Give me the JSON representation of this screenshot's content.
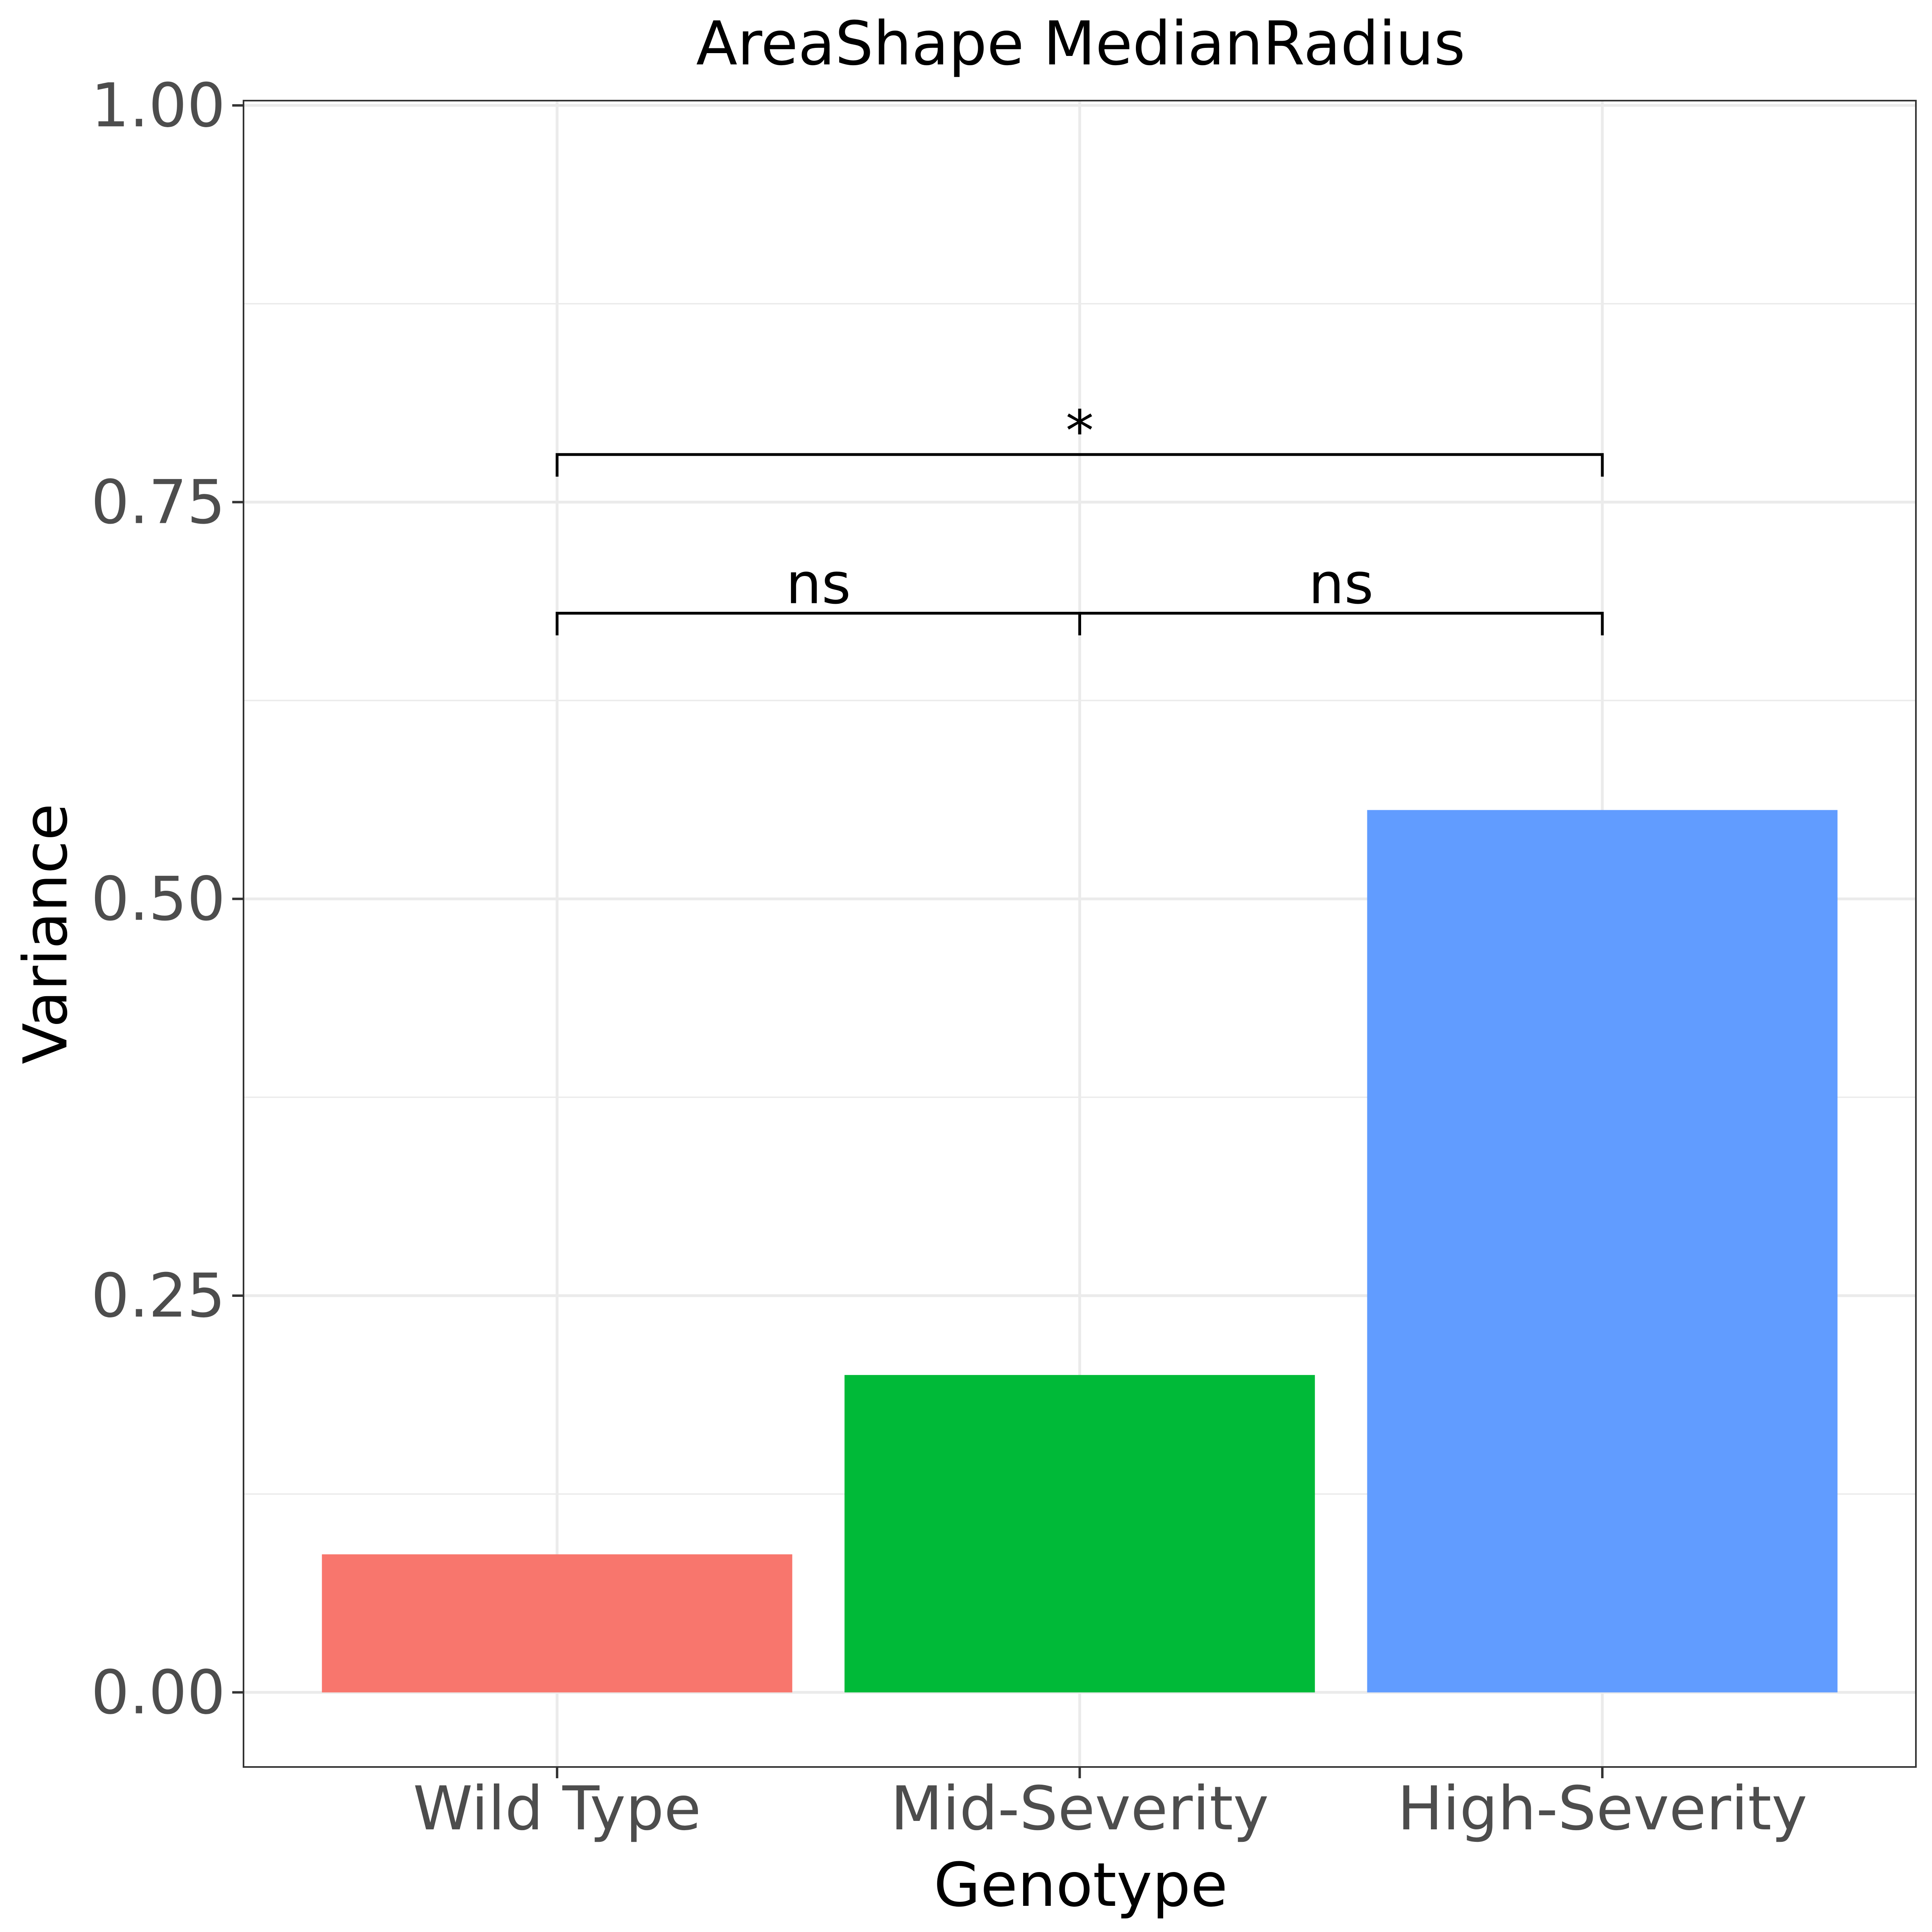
{
  "chart_data": {
    "type": "bar",
    "title": "AreaShape MedianRadius",
    "xlabel": "Genotype",
    "ylabel": "Variance",
    "categories": [
      "Wild Type",
      "Mid-Severity",
      "High-Severity"
    ],
    "values": [
      0.087,
      0.2,
      0.556
    ],
    "colors": [
      "#F8766D",
      "#00BA38",
      "#619CFF"
    ],
    "ylim": [
      -0.047,
      1.003
    ],
    "yticks": [
      0.0,
      0.25,
      0.5,
      0.75,
      1.0
    ],
    "ytick_labels": [
      "0.00",
      "0.25",
      "0.50",
      "0.75",
      "1.00"
    ],
    "grid": true,
    "legend": "none",
    "comparisons": [
      {
        "from": "Wild Type",
        "to": "Mid-Severity",
        "label": "ns",
        "y": 0.68
      },
      {
        "from": "Mid-Severity",
        "to": "High-Severity",
        "label": "ns",
        "y": 0.68
      },
      {
        "from": "Wild Type",
        "to": "High-Severity",
        "label": "*",
        "y": 0.78
      }
    ]
  }
}
